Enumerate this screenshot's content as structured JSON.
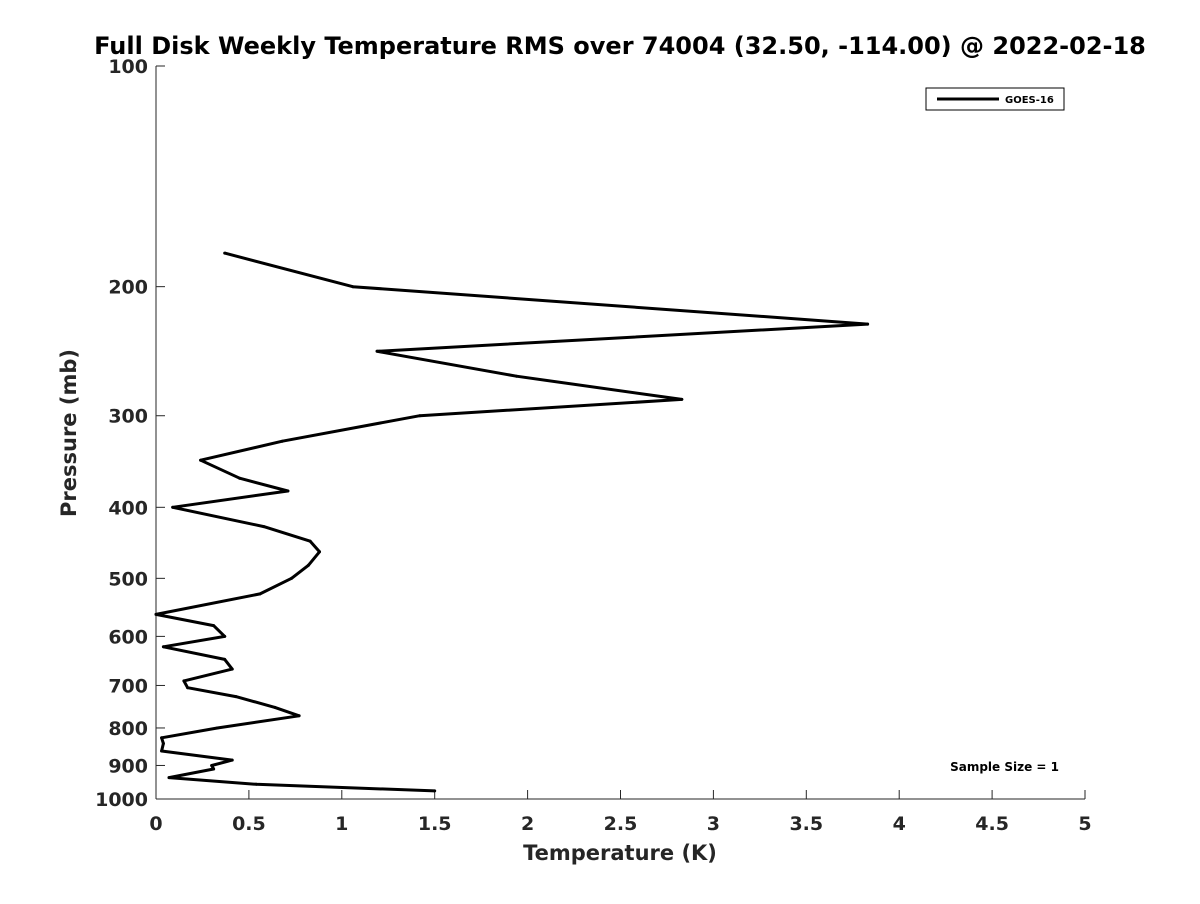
{
  "chart_data": {
    "type": "line",
    "title": "Full Disk Weekly Temperature RMS over 74004 (32.50, -114.00) @ 2022-02-18",
    "xlabel": "Temperature (K)",
    "ylabel": "Pressure (mb)",
    "xlim": [
      0,
      5
    ],
    "ylim": [
      1000,
      100
    ],
    "yscale": "log",
    "xticks": [
      "0",
      "0.5",
      "1",
      "1.5",
      "2",
      "2.5",
      "3",
      "3.5",
      "4",
      "4.5",
      "5"
    ],
    "yticks": [
      "100",
      "200",
      "300",
      "400",
      "500",
      "600",
      "700",
      "800",
      "900",
      "1000"
    ],
    "grid": false,
    "legend_position": "top-right",
    "annotation": "Sample Size = 1",
    "series": [
      {
        "name": "GOES-16",
        "color": "#000000",
        "x": [
          0.37,
          1.06,
          3.83,
          1.19,
          1.94,
          2.83,
          1.42,
          0.68,
          0.24,
          0.45,
          0.71,
          0.09,
          0.58,
          0.83,
          0.88,
          0.82,
          0.73,
          0.56,
          0.0,
          0.31,
          0.37,
          0.04,
          0.37,
          0.41,
          0.15,
          0.17,
          0.43,
          0.64,
          0.77,
          0.33,
          0.03,
          0.04,
          0.03,
          0.41,
          0.3,
          0.31,
          0.07,
          0.54,
          1.5
        ],
        "y": [
          180,
          200,
          225,
          245,
          265,
          285,
          300,
          325,
          345,
          365,
          380,
          400,
          425,
          445,
          460,
          480,
          500,
          525,
          560,
          580,
          600,
          620,
          645,
          665,
          690,
          705,
          725,
          750,
          770,
          800,
          825,
          840,
          860,
          885,
          900,
          910,
          935,
          955,
          975
        ]
      }
    ]
  }
}
